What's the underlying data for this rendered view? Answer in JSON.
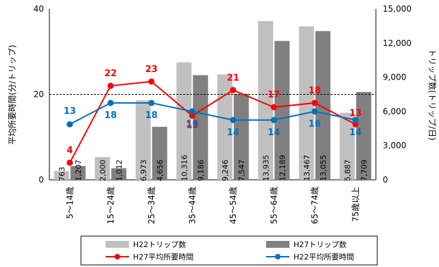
{
  "chart_data": {
    "type": "bar+line",
    "categories": [
      "5～14歳",
      "15～24歳",
      "25～34歳",
      "35～44歳",
      "45～54歳",
      "55～64歳",
      "65～74歳",
      "75歳以上"
    ],
    "bar_series": [
      {
        "name": "H22トリップ数",
        "color": "#c0c0c0",
        "values": [
          763,
          2000,
          6973,
          10316,
          9246,
          13935,
          13467,
          5887
        ],
        "labels": [
          "763",
          "2,000",
          "6,973",
          "10,316",
          "9,246",
          "13,935",
          "13,467",
          "5,887"
        ]
      },
      {
        "name": "H27トリップ数",
        "color": "#808080",
        "values": [
          1207,
          1012,
          4656,
          9186,
          7547,
          12189,
          13055,
          7709
        ],
        "labels": [
          "1,207",
          "1,012",
          "4,656",
          "9,186",
          "7,547",
          "12,189",
          "13,055",
          "7,709"
        ]
      }
    ],
    "line_series": [
      {
        "name": "H27平均所要時間",
        "color": "#ff0000",
        "values": [
          4,
          22,
          23,
          15,
          21,
          17,
          18,
          13
        ]
      },
      {
        "name": "H22平均所要時間",
        "color": "#0070c0",
        "values": [
          13,
          18,
          18,
          16,
          14,
          14,
          16,
          14
        ]
      }
    ],
    "y_left": {
      "label": "平均所要時間(分/トリップ)",
      "range": [
        0,
        40
      ],
      "ticks": [
        "0",
        "20",
        "40"
      ],
      "reference_line": 20
    },
    "y_right": {
      "label": "トリップ数(トリップ/日)",
      "range": [
        0,
        15000
      ],
      "ticks": [
        "0",
        "3,000",
        "6,000",
        "9,000",
        "12,000",
        "15,000"
      ]
    },
    "legend": {
      "position": "bottom",
      "order": [
        "H22トリップ数",
        "H27トリップ数",
        "H27平均所要時間",
        "H22平均所要時間"
      ]
    }
  }
}
